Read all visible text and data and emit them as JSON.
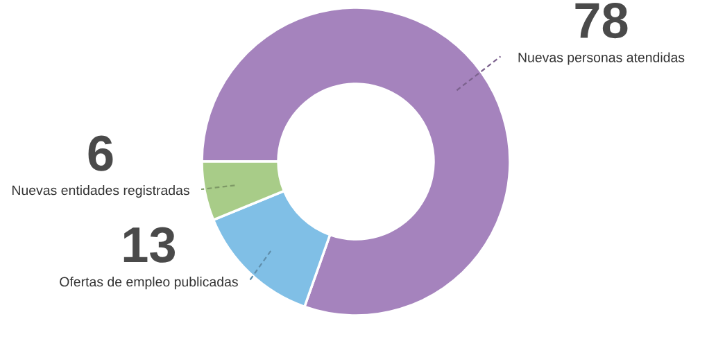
{
  "chart_data": {
    "type": "donut",
    "categories": [
      "Nuevas personas atendidas",
      "Ofertas de empleo publicadas",
      "Nuevas entidades registradas"
    ],
    "values": [
      78,
      13,
      6
    ],
    "colors": [
      "#a583bd",
      "#80bfe6",
      "#a8cc88"
    ],
    "data_labels": true,
    "legend": false
  }
}
